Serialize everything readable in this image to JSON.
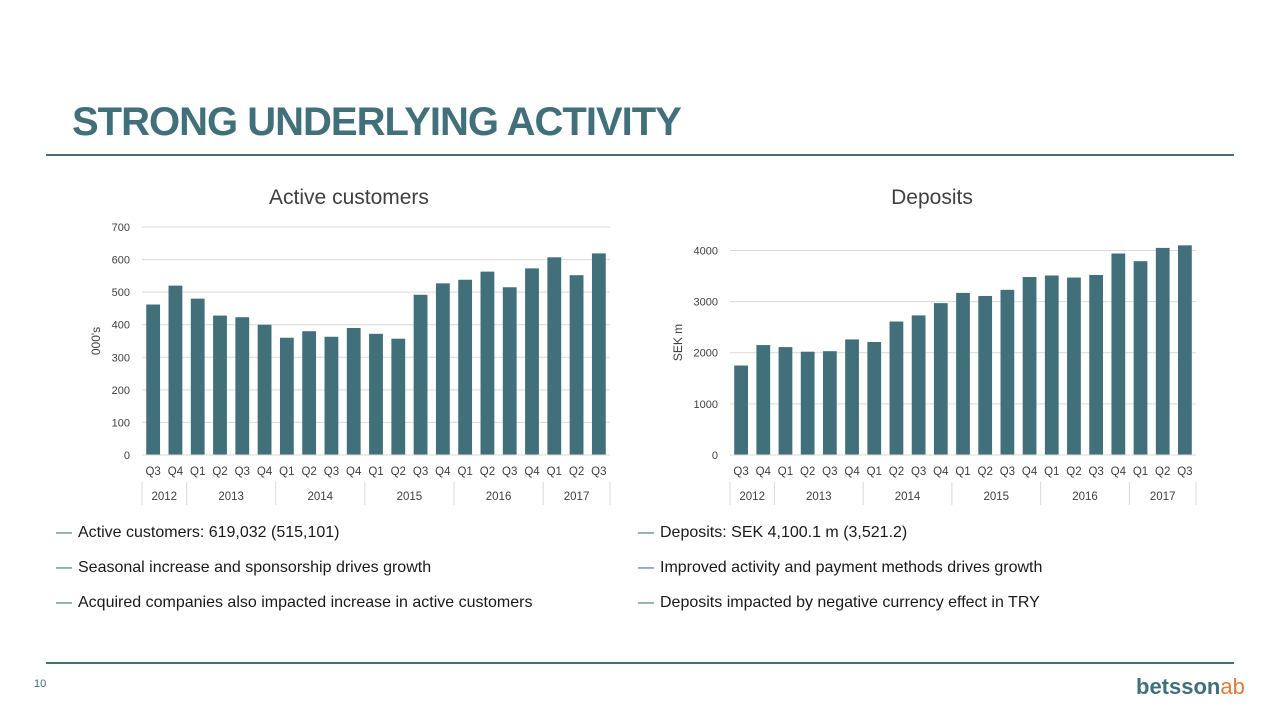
{
  "slide": {
    "title": "STRONG UNDERLYING ACTIVITY",
    "page_number": "10",
    "logo": {
      "brand": "betsson",
      "suffix": "ab",
      "brand_color": "#41707a",
      "suffix_color": "#e07b39"
    },
    "accent_color": "#41707a"
  },
  "chart_data": [
    {
      "type": "bar",
      "title": "Active customers",
      "ylabel": "000's",
      "xlabel": "",
      "ylim": [
        0,
        700
      ],
      "yticks": [
        0,
        100,
        200,
        300,
        400,
        500,
        600,
        700
      ],
      "grid": true,
      "bar_color": "#41707a",
      "categories": [
        "Q3",
        "Q4",
        "Q1",
        "Q2",
        "Q3",
        "Q4",
        "Q1",
        "Q2",
        "Q3",
        "Q4",
        "Q1",
        "Q2",
        "Q3",
        "Q4",
        "Q1",
        "Q2",
        "Q3",
        "Q4",
        "Q1",
        "Q2",
        "Q3"
      ],
      "years": [
        {
          "label": "2012",
          "count": 2
        },
        {
          "label": "2013",
          "count": 4
        },
        {
          "label": "2014",
          "count": 4
        },
        {
          "label": "2015",
          "count": 4
        },
        {
          "label": "2016",
          "count": 4
        },
        {
          "label": "2017",
          "count": 3
        }
      ],
      "values": [
        462,
        520,
        480,
        428,
        423,
        400,
        360,
        380,
        363,
        390,
        372,
        357,
        492,
        527,
        538,
        563,
        515,
        573,
        607,
        552,
        619
      ]
    },
    {
      "type": "bar",
      "title": "Deposits",
      "ylabel": "SEK m",
      "xlabel": "",
      "ylim": [
        0,
        4400
      ],
      "yticks": [
        0,
        1000,
        2000,
        3000,
        4000
      ],
      "grid": true,
      "bar_color": "#41707a",
      "categories": [
        "Q3",
        "Q4",
        "Q1",
        "Q2",
        "Q3",
        "Q4",
        "Q1",
        "Q2",
        "Q3",
        "Q4",
        "Q1",
        "Q2",
        "Q3",
        "Q4",
        "Q1",
        "Q2",
        "Q3",
        "Q4",
        "Q1",
        "Q2",
        "Q3"
      ],
      "years": [
        {
          "label": "2012",
          "count": 2
        },
        {
          "label": "2013",
          "count": 4
        },
        {
          "label": "2014",
          "count": 4
        },
        {
          "label": "2015",
          "count": 4
        },
        {
          "label": "2016",
          "count": 4
        },
        {
          "label": "2017",
          "count": 3
        }
      ],
      "values": [
        1750,
        2150,
        2110,
        2020,
        2030,
        2260,
        2210,
        2610,
        2730,
        2970,
        3170,
        3110,
        3230,
        3480,
        3510,
        3470,
        3520,
        3940,
        3790,
        4050,
        4100
      ]
    }
  ],
  "bullets_left": [
    "Active customers: 619,032 (515,101)",
    "Seasonal increase and sponsorship drives growth",
    "Acquired companies also impacted increase in active customers"
  ],
  "bullets_right": [
    "Deposits: SEK 4,100.1 m (3,521.2)",
    "Improved activity and payment methods drives growth",
    "Deposits impacted by negative currency effect in TRY"
  ],
  "bullet_dash": "—"
}
